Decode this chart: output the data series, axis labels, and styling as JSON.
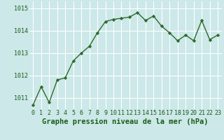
{
  "x": [
    0,
    1,
    2,
    3,
    4,
    5,
    6,
    7,
    8,
    9,
    10,
    11,
    12,
    13,
    14,
    15,
    16,
    17,
    18,
    19,
    20,
    21,
    22,
    23
  ],
  "y": [
    1010.7,
    1011.5,
    1010.8,
    1011.8,
    1011.9,
    1012.65,
    1013.0,
    1013.3,
    1013.9,
    1014.4,
    1014.5,
    1014.55,
    1014.6,
    1014.8,
    1014.45,
    1014.65,
    1014.2,
    1013.9,
    1013.55,
    1013.8,
    1013.55,
    1014.45,
    1013.6,
    1013.8
  ],
  "line_color": "#2d6a2d",
  "marker": "D",
  "marker_size": 2.2,
  "line_width": 1.0,
  "bg_color": "#cce8e8",
  "grid_color": "#ffffff",
  "xlabel": "Graphe pression niveau de la mer (hPa)",
  "xlabel_color": "#1a5c1a",
  "xlabel_fontsize": 7.5,
  "tick_color": "#1a5c1a",
  "tick_fontsize": 6.0,
  "ylim": [
    1010.5,
    1015.3
  ],
  "yticks": [
    1011,
    1012,
    1013,
    1014,
    1015
  ],
  "xticks": [
    0,
    1,
    2,
    3,
    4,
    5,
    6,
    7,
    8,
    9,
    10,
    11,
    12,
    13,
    14,
    15,
    16,
    17,
    18,
    19,
    20,
    21,
    22,
    23
  ]
}
